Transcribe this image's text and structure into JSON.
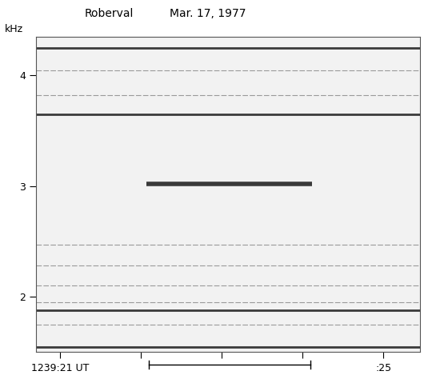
{
  "chart_data": {
    "type": "spectrogram",
    "station": "Roberval",
    "date": "Mar. 17, 1977",
    "ylabel": "kHz",
    "xlim": [
      20.7,
      25.45
    ],
    "xticks": [
      {
        "value": 21,
        "label": "1239:21 UT"
      },
      {
        "value": 22,
        "label": null
      },
      {
        "value": 23,
        "label": null
      },
      {
        "value": 24,
        "label": null
      },
      {
        "value": 25,
        "label": ":25"
      }
    ],
    "ylim": [
      1.5,
      4.35
    ],
    "yticks": [
      2,
      3,
      4
    ],
    "strong_lines": [
      4.25,
      3.65,
      1.88,
      1.55
    ],
    "weak_lines": [
      4.05,
      3.82,
      2.47,
      2.28,
      2.1,
      1.95,
      1.75
    ],
    "emission": {
      "frequency": 3.02,
      "start": 22.07,
      "end": 24.12
    },
    "scale_bar": [
      22.1,
      24.1
    ],
    "color": "#3a3a3a",
    "grid": false
  }
}
